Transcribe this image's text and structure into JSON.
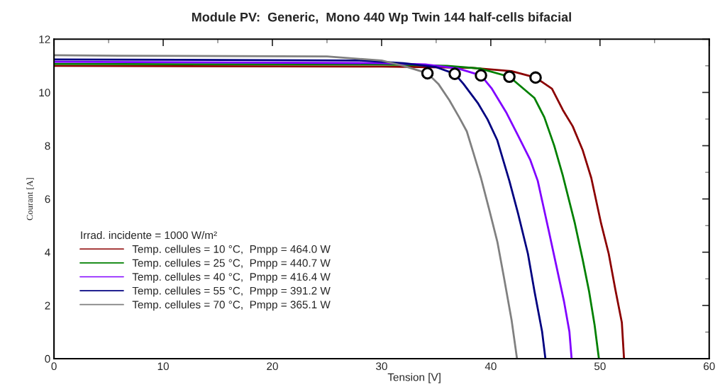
{
  "chart_data": {
    "type": "line",
    "title": "Module PV:  Generic,  Mono 440 Wp Twin 144 half-cells bifacial",
    "xlabel": "Tension [V]",
    "ylabel": "Courant [A]",
    "legend_title": "Irrad. incidente = 1000 W/m²",
    "xlim": [
      0,
      60
    ],
    "ylim": [
      0,
      12
    ],
    "xticks": [
      0,
      10,
      20,
      30,
      40,
      50,
      60
    ],
    "yticks": [
      0,
      2,
      4,
      6,
      8,
      10,
      12
    ],
    "grid": false,
    "legend": "bottom left",
    "line_style": "solid",
    "marker": "none",
    "series": [
      {
        "name": "Temp. cellules = 10 °C,  Pmpp = 464.0 W",
        "color": "#8b0000",
        "x": [
          0,
          30,
          38,
          41.9,
          44.1,
          45.6,
          46.6,
          47.5,
          48.4,
          49.2,
          50.1,
          50.8,
          51.4,
          52.0,
          52.2
        ],
        "values": [
          11.0,
          10.97,
          10.93,
          10.8,
          10.56,
          10.14,
          9.34,
          8.73,
          7.85,
          6.79,
          5.08,
          3.94,
          2.61,
          1.36,
          0
        ]
      },
      {
        "name": "Temp. cellules = 25 °C,  Pmpp = 440.7 W",
        "color": "#008000",
        "x": [
          0,
          30,
          36,
          39,
          41.7,
          44.0,
          44.9,
          45.8,
          46.6,
          47.7,
          48.4,
          49.0,
          49.5,
          49.9
        ],
        "values": [
          11.07,
          11.05,
          11.0,
          10.9,
          10.59,
          9.79,
          9.07,
          8.01,
          6.87,
          5.08,
          3.75,
          2.53,
          1.28,
          0
        ]
      },
      {
        "name": "Temp. cellules = 40 °C,  Pmpp = 416.4 W",
        "color": "#8000ff",
        "x": [
          0,
          30,
          34,
          37,
          39.1,
          40.1,
          41.4,
          42.5,
          43.6,
          44.3,
          45.3,
          46.0,
          46.7,
          47.2,
          47.4
        ],
        "values": [
          11.15,
          11.1,
          11.05,
          10.9,
          10.64,
          10.14,
          9.26,
          8.38,
          7.48,
          6.68,
          4.82,
          3.49,
          2.16,
          1.01,
          0
        ]
      },
      {
        "name": "Temp. cellules = 55 °C,  Pmpp = 391.2 W",
        "color": "#000080",
        "x": [
          0,
          28,
          32,
          35,
          36.7,
          37.5,
          38.8,
          39.7,
          40.6,
          41.7,
          42.5,
          43.4,
          44.0,
          44.7,
          45.0
        ],
        "values": [
          11.24,
          11.2,
          11.1,
          10.95,
          10.7,
          10.32,
          9.61,
          8.99,
          8.2,
          6.68,
          5.45,
          3.94,
          2.53,
          1.01,
          0
        ]
      },
      {
        "name": "Temp. cellules = 70 °C,  Pmpp = 365.1 W",
        "color": "#808080",
        "x": [
          0,
          6,
          25,
          30,
          32,
          34.2,
          35.2,
          36.2,
          37.1,
          37.8,
          38.4,
          39.1,
          39.9,
          40.6,
          41.2,
          41.9,
          42.4
        ],
        "values": [
          11.4,
          11.38,
          11.35,
          11.2,
          11.0,
          10.72,
          10.32,
          9.71,
          9.07,
          8.54,
          7.74,
          6.79,
          5.53,
          4.39,
          3.06,
          1.46,
          0
        ]
      },
      {
        "type": "scatter",
        "marker": "circle",
        "color": "#000000",
        "x": [
          44.1,
          41.7,
          39.1,
          36.7,
          34.2
        ],
        "values": [
          10.56,
          10.59,
          10.64,
          10.7,
          10.72
        ]
      }
    ]
  }
}
